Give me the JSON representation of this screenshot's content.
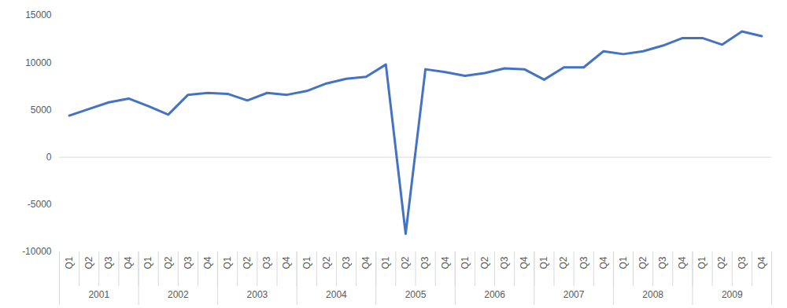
{
  "chart_data": {
    "type": "line",
    "categories": [
      "Q1",
      "Q2",
      "Q3",
      "Q4",
      "Q1",
      "Q2",
      "Q3",
      "Q4",
      "Q1",
      "Q2",
      "Q3",
      "Q4",
      "Q1",
      "Q2",
      "Q3",
      "Q4",
      "Q1",
      "Q2",
      "Q3",
      "Q4",
      "Q1",
      "Q2",
      "Q3",
      "Q4",
      "Q1",
      "Q2",
      "Q3",
      "Q4",
      "Q1",
      "Q2",
      "Q3",
      "Q4",
      "Q1",
      "Q2",
      "Q3",
      "Q4"
    ],
    "years": [
      "2001",
      "2002",
      "2003",
      "2004",
      "2005",
      "2006",
      "2007",
      "2008",
      "2009"
    ],
    "values": [
      4400,
      5100,
      5800,
      6200,
      5400,
      4500,
      6600,
      6800,
      6700,
      6000,
      6800,
      6600,
      7000,
      7800,
      8300,
      8500,
      9800,
      -8100,
      9300,
      9000,
      8600,
      8900,
      9400,
      9300,
      8200,
      9500,
      9500,
      11200,
      10900,
      11200,
      11800,
      12600,
      12600,
      11900,
      13300,
      12800
    ],
    "color": "#4472c4",
    "ylim": [
      -10000,
      15000
    ],
    "yticks": [
      -10000,
      -5000,
      0,
      5000,
      10000,
      15000
    ],
    "grid": false
  }
}
